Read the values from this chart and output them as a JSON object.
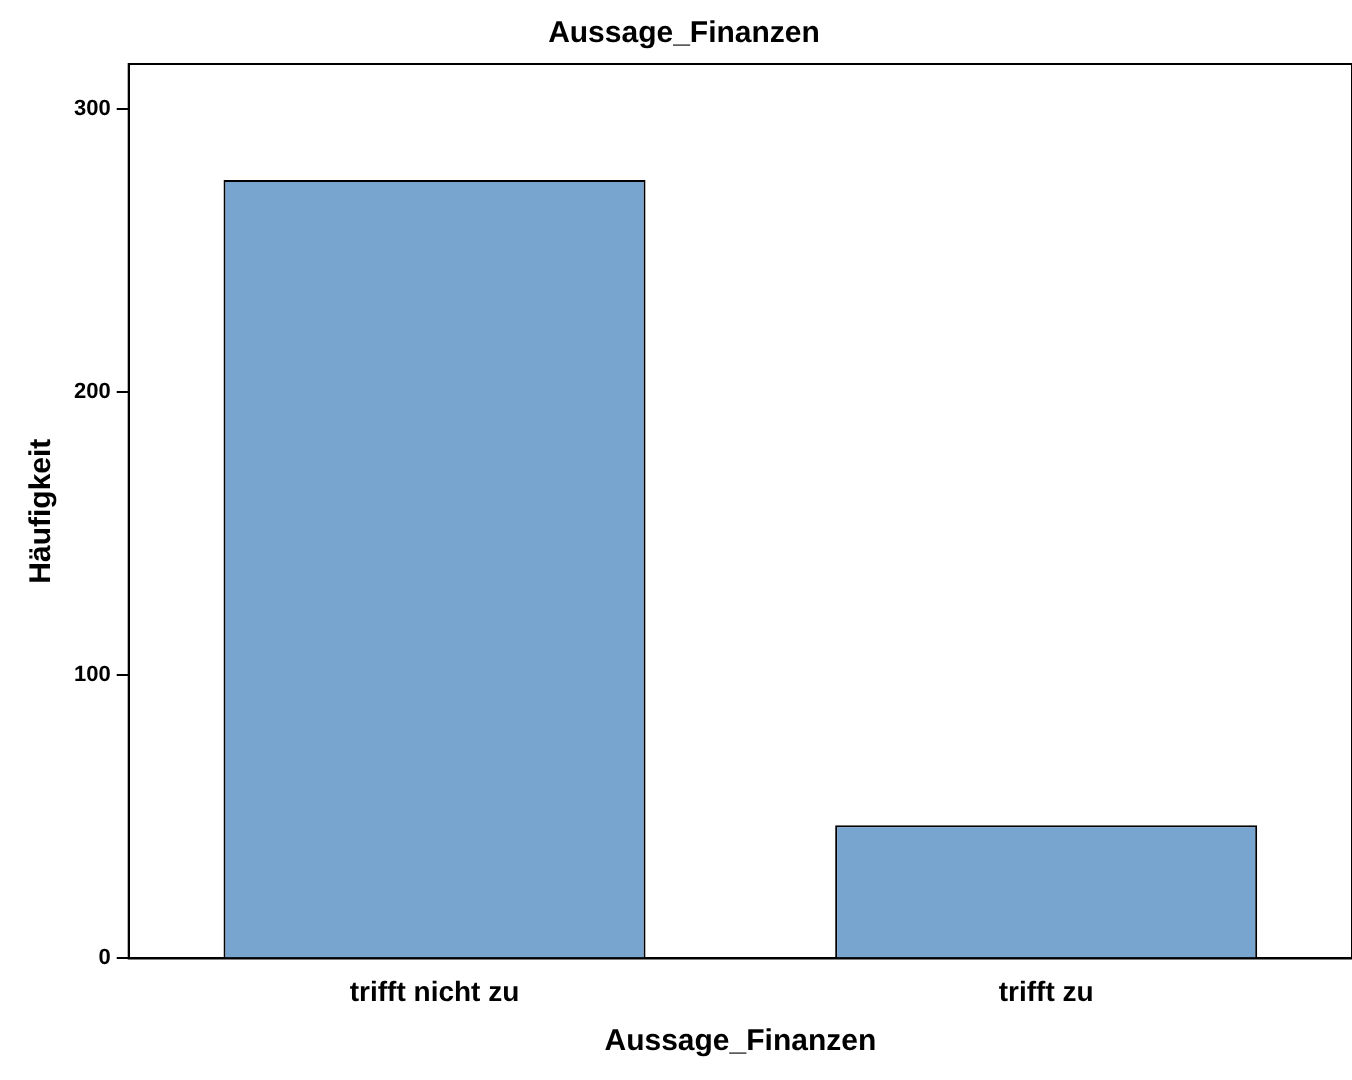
{
  "chart_data": {
    "type": "bar",
    "title": "Aussage_Finanzen",
    "xlabel": "Aussage_Finanzen",
    "ylabel": "Häufigkeit",
    "categories": [
      "trifft nicht zu",
      "trifft zu"
    ],
    "values": [
      275,
      47
    ],
    "color": "#77a5cf",
    "ylim": [
      0,
      316
    ],
    "yticks": [
      0,
      100,
      200,
      300
    ],
    "grid": false,
    "legend": false
  }
}
